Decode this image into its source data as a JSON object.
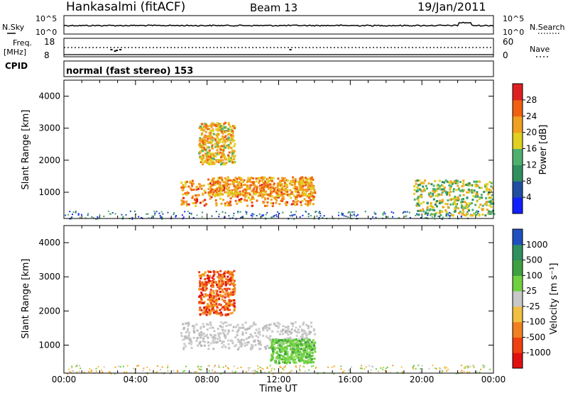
{
  "header": {
    "station": "Hankasalmi (fitACF)",
    "beam": "Beam 13",
    "date": "19/Jan/2011"
  },
  "noise_panel": {
    "left_label": "N.Sky",
    "right_label": "N.Search",
    "left_ticks": [
      "10^5",
      "10^0"
    ],
    "right_ticks": [
      "10^5",
      "10^0"
    ]
  },
  "freq_panel": {
    "left_label_1": "Freq.",
    "left_label_2": "[MHz]",
    "left_ticks": [
      "18",
      "8"
    ],
    "right_label": "Nave",
    "right_ticks": [
      "60",
      "0"
    ]
  },
  "cpid": {
    "label": "CPID",
    "mode_text": "normal (fast stereo) 153"
  },
  "x_axis": {
    "label": "Time UT",
    "ticks": [
      "00:00",
      "04:00",
      "08:00",
      "12:00",
      "16:00",
      "20:00",
      "00:00"
    ]
  },
  "chart_data": [
    {
      "type": "heatmap",
      "title": "",
      "xlabel": "Time UT",
      "ylabel": "Slant Range [km]",
      "x_range_hours": [
        0,
        24
      ],
      "ylim": [
        180,
        4500
      ],
      "y_ticks": [
        1000,
        2000,
        3000,
        4000
      ],
      "colorbar": {
        "label": "Power [dB]",
        "ticks": [
          "4",
          "8",
          "12",
          "16",
          "20",
          "24",
          "28"
        ],
        "colors": [
          "#1020ff",
          "#1f4ea3",
          "#2f8f5f",
          "#4fb06f",
          "#e0d020",
          "#f0a020",
          "#f06010",
          "#e02020"
        ]
      },
      "features": [
        {
          "name": "dayside-arc",
          "t_start": 6.5,
          "t_end": 14,
          "range_km": [
            600,
            1400
          ],
          "peak_db": 28
        },
        {
          "name": "central-band",
          "t_start": 8,
          "t_end": 14,
          "range_km": [
            900,
            1500
          ],
          "peak_db": 26
        },
        {
          "name": "high-range-patch",
          "t_start": 7.5,
          "t_end": 9.5,
          "range_km": [
            1900,
            3200
          ],
          "peak_db": 24
        },
        {
          "name": "evening-echoes",
          "t_start": 19.5,
          "t_end": 24,
          "range_km": [
            300,
            1400
          ],
          "peak_db": 20
        }
      ]
    },
    {
      "type": "heatmap",
      "title": "",
      "xlabel": "Time UT",
      "ylabel": "Slant Range [km]",
      "x_range_hours": [
        0,
        24
      ],
      "ylim": [
        180,
        4500
      ],
      "y_ticks": [
        1000,
        2000,
        3000,
        4000
      ],
      "colorbar": {
        "label": "Velocity [m s⁻¹]",
        "ticks": [
          "1000",
          "500",
          "100",
          "25",
          "-25",
          "-100",
          "-500",
          "-1000"
        ],
        "colors": [
          "#2050c0",
          "#2f8f5f",
          "#40a040",
          "#70d040",
          "#c8c8c8",
          "#f0c040",
          "#f08020",
          "#f04010",
          "#e01010"
        ]
      },
      "features": [
        {
          "name": "ground-scatter-arc",
          "t_start": 6.5,
          "t_end": 14,
          "range_km": [
            900,
            1700
          ],
          "velocity_ms": 0
        },
        {
          "name": "negative-flow",
          "t_start": 7.5,
          "t_end": 9.5,
          "range_km": [
            1900,
            3200
          ],
          "velocity_ms": -500
        },
        {
          "name": "positive-flow",
          "t_start": 11.5,
          "t_end": 14,
          "range_km": [
            500,
            1200
          ],
          "velocity_ms": 100
        }
      ]
    }
  ]
}
